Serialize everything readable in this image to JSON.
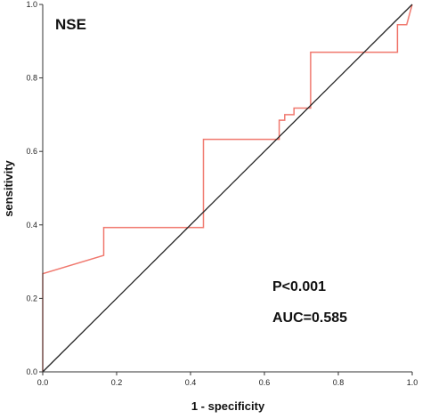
{
  "chart_data": {
    "type": "line",
    "title": "",
    "panel_label": "NSE",
    "xlabel": "1 - specificity",
    "ylabel": "sensitivity",
    "xlim": [
      0,
      1
    ],
    "ylim": [
      0,
      1
    ],
    "x_ticks": [
      "0.0",
      "0.2",
      "0.4",
      "0.6",
      "0.8",
      "1.0"
    ],
    "y_ticks": [
      "0.0",
      "0.2",
      "0.4",
      "0.6",
      "0.8",
      "1.0"
    ],
    "grid": false,
    "legend": "none",
    "annotations": [
      "P<0.001",
      "AUC=0.585"
    ],
    "series": [
      {
        "color": "#f0786e",
        "x": [
          0.0,
          0.0,
          0.0,
          0.0,
          0.165,
          0.165,
          0.435,
          0.435,
          0.64,
          0.64,
          0.655,
          0.655,
          0.68,
          0.68,
          0.725,
          0.725,
          0.96,
          0.96,
          0.985,
          1.0
        ],
        "y": [
          0.0,
          0.05,
          0.05,
          0.267,
          0.317,
          0.393,
          0.393,
          0.633,
          0.633,
          0.685,
          0.685,
          0.7,
          0.7,
          0.718,
          0.718,
          0.87,
          0.87,
          0.945,
          0.945,
          1.0
        ]
      },
      {
        "color": "#222222",
        "x": [
          0,
          1
        ],
        "y": [
          0,
          1
        ]
      }
    ]
  }
}
